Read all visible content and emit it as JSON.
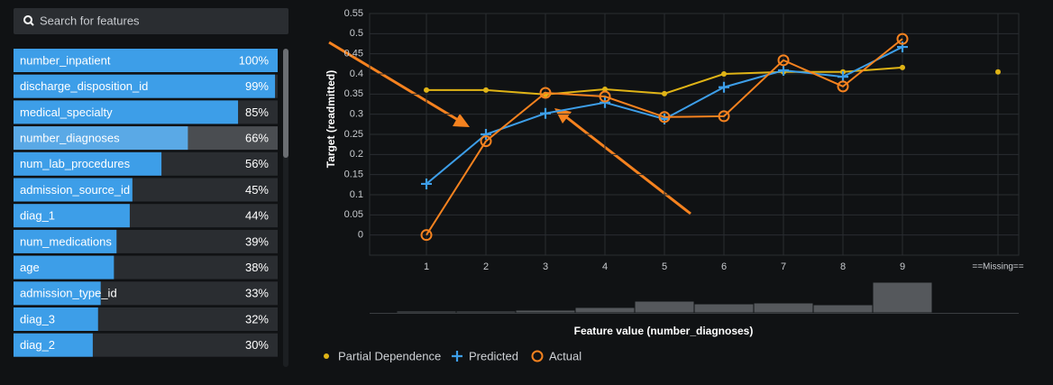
{
  "search": {
    "placeholder": "Search for features"
  },
  "features": [
    {
      "name": "number_inpatient",
      "value": 100,
      "label": "100%"
    },
    {
      "name": "discharge_disposition_id",
      "value": 99,
      "label": "99%"
    },
    {
      "name": "medical_specialty",
      "value": 85,
      "label": "85%"
    },
    {
      "name": "number_diagnoses",
      "value": 66,
      "label": "66%",
      "selected": true
    },
    {
      "name": "num_lab_procedures",
      "value": 56,
      "label": "56%"
    },
    {
      "name": "admission_source_id",
      "value": 45,
      "label": "45%"
    },
    {
      "name": "diag_1",
      "value": 44,
      "label": "44%"
    },
    {
      "name": "num_medications",
      "value": 39,
      "label": "39%"
    },
    {
      "name": "age",
      "value": 38,
      "label": "38%"
    },
    {
      "name": "admission_type_id",
      "value": 33,
      "label": "33%"
    },
    {
      "name": "diag_3",
      "value": 32,
      "label": "32%"
    },
    {
      "name": "diag_2",
      "value": 30,
      "label": "30%"
    }
  ],
  "chart_data": {
    "type": "line",
    "y_label": "Target (readmitted)",
    "x_label": "Feature value (number_diagnoses)",
    "categories": [
      "1",
      "2",
      "3",
      "4",
      "5",
      "6",
      "7",
      "8",
      "9",
      "==Missing=="
    ],
    "series": [
      {
        "name": "Partial Dependence",
        "color": "#e0b416",
        "marker": "dot",
        "values": [
          0.36,
          0.36,
          0.349,
          0.362,
          0.351,
          0.4,
          0.405,
          0.405,
          0.416,
          0.405
        ]
      },
      {
        "name": "Predicted",
        "color": "#3d9ee8",
        "marker": "plus",
        "values": [
          0.127,
          0.25,
          0.302,
          0.329,
          0.288,
          0.367,
          0.409,
          0.393,
          0.467,
          null
        ]
      },
      {
        "name": "Actual",
        "color": "#f5821f",
        "marker": "circle",
        "values": [
          0,
          0.233,
          0.353,
          0.344,
          0.293,
          0.295,
          0.434,
          0.369,
          0.487,
          null
        ]
      }
    ],
    "ylim": [
      -0.05,
      0.55
    ],
    "yticks": [
      0,
      0.05,
      0.1,
      0.15,
      0.2,
      0.25,
      0.3,
      0.35,
      0.4,
      0.45,
      0.5,
      0.55
    ],
    "grid": true,
    "histogram": {
      "color": "#55585c",
      "values": [
        2,
        2,
        3,
        6,
        13,
        10,
        11,
        9,
        34,
        null
      ]
    }
  }
}
